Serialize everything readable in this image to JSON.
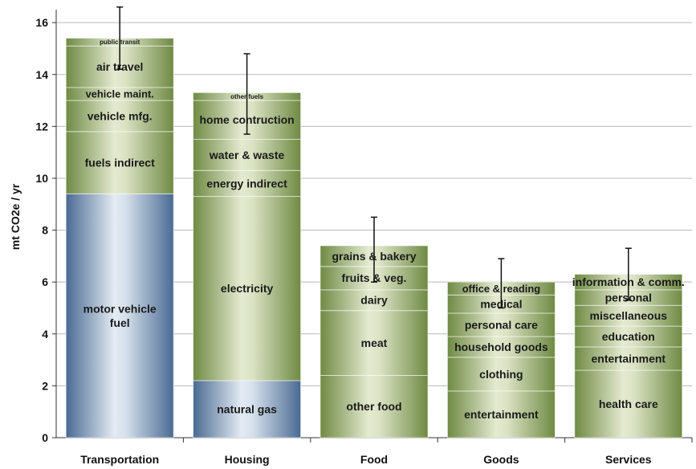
{
  "chart_data": {
    "type": "bar",
    "stacked": true,
    "ylabel": "mt CO2e / yr",
    "xlabel": "",
    "ylim": [
      0,
      16.5
    ],
    "yticks": [
      0,
      2,
      4,
      6,
      8,
      10,
      12,
      14,
      16
    ],
    "grid": true,
    "categories": [
      {
        "name": "Transportation",
        "total": 15.4,
        "error": [
          14.2,
          16.6
        ],
        "segments": [
          {
            "label": "motor vehicle fuel",
            "lines": [
              "motor vehicle",
              "fuel"
            ],
            "value": 9.4,
            "color": "blue"
          },
          {
            "label": "fuels indirect",
            "value": 2.4,
            "color": "green"
          },
          {
            "label": "vehicle mfg.",
            "value": 1.2,
            "color": "green"
          },
          {
            "label": "vehicle maint.",
            "value": 0.5,
            "color": "green"
          },
          {
            "label": "air travel",
            "value": 1.6,
            "color": "green"
          },
          {
            "label": "public transit",
            "value": 0.3,
            "color": "green"
          }
        ]
      },
      {
        "name": "Housing",
        "total": 13.3,
        "error": [
          11.7,
          14.8
        ],
        "segments": [
          {
            "label": "natural gas",
            "value": 2.2,
            "color": "blue"
          },
          {
            "label": "electricity",
            "value": 7.1,
            "color": "green"
          },
          {
            "label": "energy indirect",
            "value": 1.0,
            "color": "green"
          },
          {
            "label": "water & waste",
            "value": 1.2,
            "color": "green"
          },
          {
            "label": "home contruction",
            "value": 1.5,
            "color": "green"
          },
          {
            "label": "other fuels",
            "value": 0.3,
            "color": "green"
          }
        ]
      },
      {
        "name": "Food",
        "total": 7.4,
        "error": [
          6.0,
          8.5
        ],
        "segments": [
          {
            "label": "other food",
            "value": 2.4,
            "color": "green"
          },
          {
            "label": "meat",
            "value": 2.5,
            "color": "green"
          },
          {
            "label": "dairy",
            "value": 0.8,
            "color": "green"
          },
          {
            "label": "fruits & veg.",
            "value": 0.9,
            "color": "green"
          },
          {
            "label": "grains & bakery",
            "value": 0.8,
            "color": "green"
          }
        ]
      },
      {
        "name": "Goods",
        "total": 6.0,
        "error": [
          5.0,
          6.9
        ],
        "segments": [
          {
            "label": "entertainment",
            "value": 1.8,
            "color": "green"
          },
          {
            "label": "clothing",
            "value": 1.3,
            "color": "green"
          },
          {
            "label": "household goods",
            "value": 0.8,
            "color": "green"
          },
          {
            "label": "personal care",
            "value": 0.9,
            "color": "green"
          },
          {
            "label": "medical",
            "value": 0.7,
            "color": "green"
          },
          {
            "label": "office & reading",
            "value": 0.5,
            "color": "green"
          }
        ]
      },
      {
        "name": "Services",
        "total": 6.3,
        "error": [
          5.3,
          7.3
        ],
        "segments": [
          {
            "label": "health care",
            "value": 2.6,
            "color": "green"
          },
          {
            "label": "entertainment",
            "value": 0.9,
            "color": "green"
          },
          {
            "label": "education",
            "value": 0.8,
            "color": "green"
          },
          {
            "label": "miscellaneous",
            "value": 0.8,
            "color": "green"
          },
          {
            "label": "personal",
            "value": 0.6,
            "color": "green"
          },
          {
            "label": "information & comm.",
            "value": 0.6,
            "color": "green"
          }
        ]
      }
    ],
    "colors": {
      "green_light": "#dbe3c4",
      "green_dark": "#6f8a44",
      "blue_light": "#dce6f0",
      "blue_dark": "#4a6a93",
      "grid": "#b9b9b9",
      "axis": "#333333",
      "errorbar": "#111111"
    }
  }
}
